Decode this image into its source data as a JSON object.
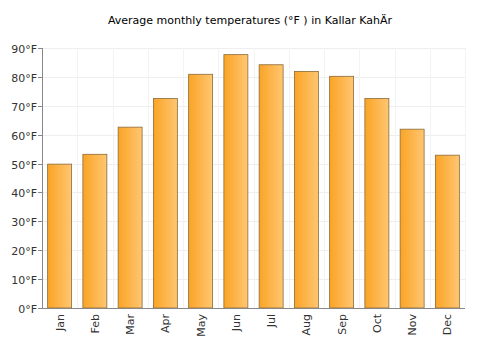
{
  "chart_data": {
    "type": "bar",
    "title": "Average monthly temperatures (°F ) in Kallar KahÄr",
    "categories": [
      "Jan",
      "Feb",
      "Mar",
      "Apr",
      "May",
      "Jun",
      "Jul",
      "Aug",
      "Sep",
      "Oct",
      "Nov",
      "Dec"
    ],
    "values": [
      49.8,
      53.2,
      62.6,
      72.5,
      80.9,
      87.7,
      84.2,
      81.9,
      80.2,
      72.5,
      61.9,
      52.9
    ],
    "color": "#ffa726",
    "ylim": [
      0,
      90
    ],
    "yticks": [
      {
        "value": 0,
        "label": "0°F"
      },
      {
        "value": 10,
        "label": "10°F"
      },
      {
        "value": 20,
        "label": "20°F"
      },
      {
        "value": 30,
        "label": "30°F"
      },
      {
        "value": 40,
        "label": "40°F"
      },
      {
        "value": 50,
        "label": "50°F"
      },
      {
        "value": 60,
        "label": "60°F"
      },
      {
        "value": 70,
        "label": "70°F"
      },
      {
        "value": 80,
        "label": "80°F"
      },
      {
        "value": 90,
        "label": "90°F"
      }
    ],
    "grid": true
  }
}
